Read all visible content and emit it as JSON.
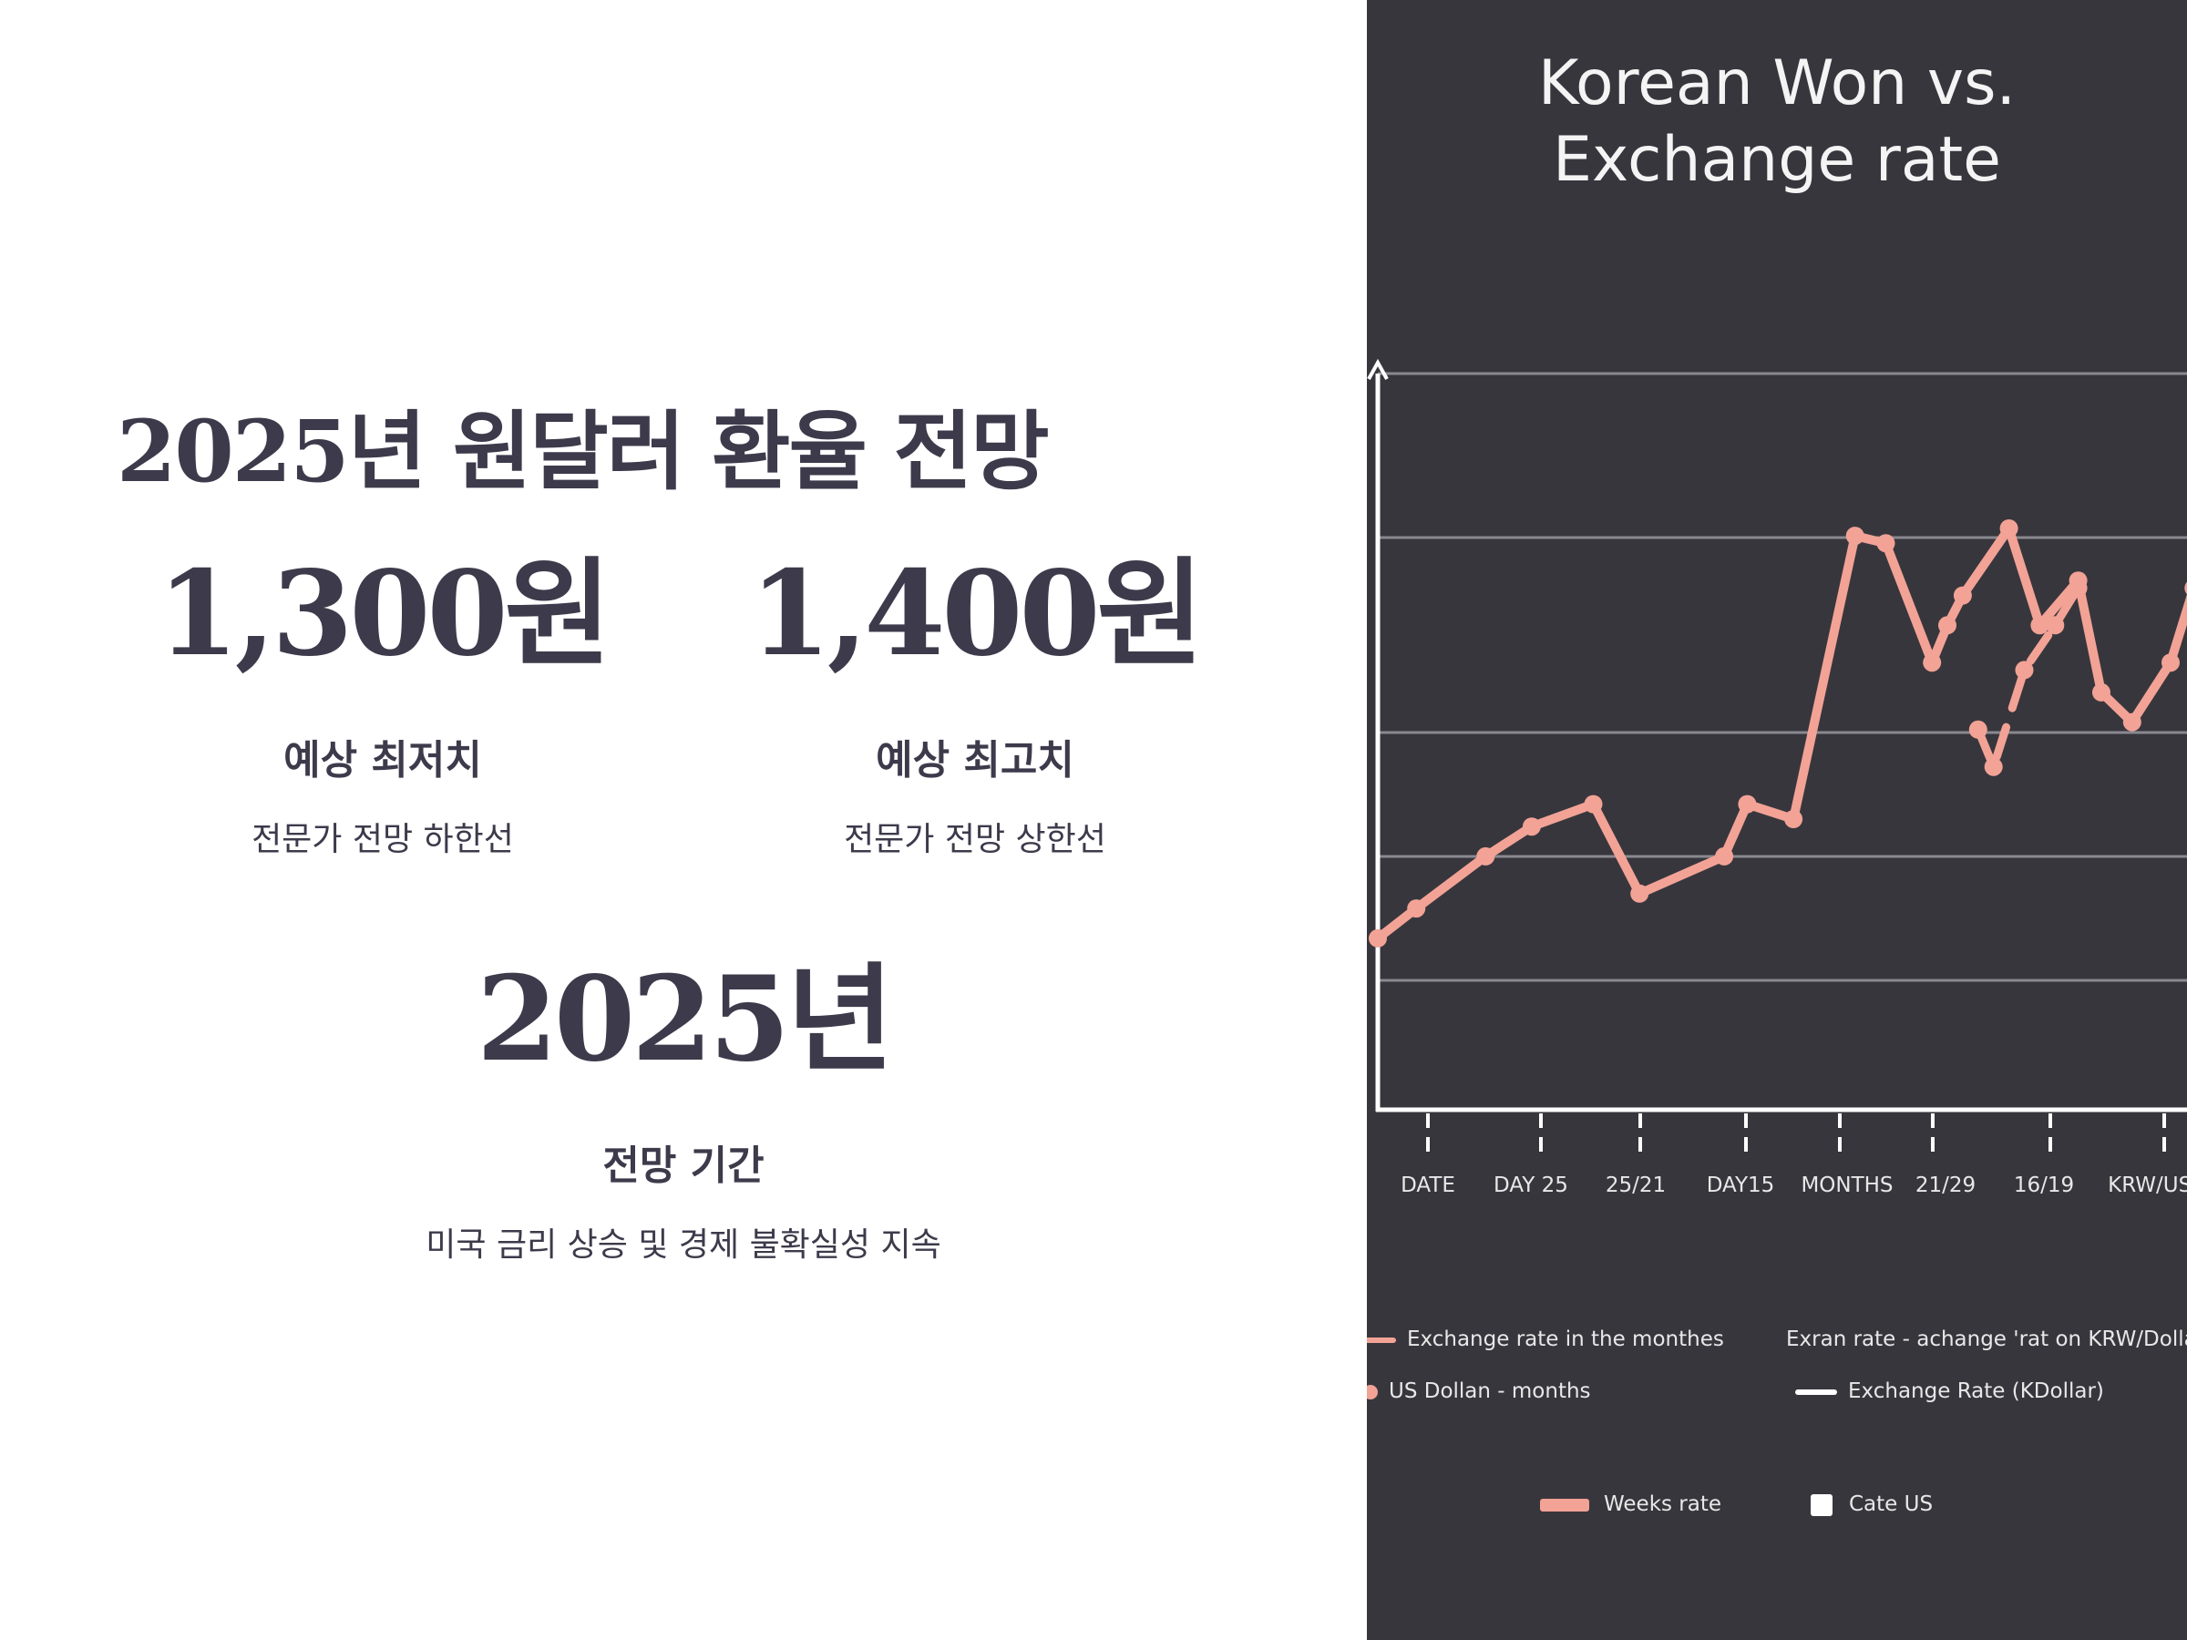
{
  "left": {
    "title": "2025년 원달러 환율 전망",
    "stats": [
      {
        "value": "1,300원",
        "label": "예상 최저치",
        "desc": "전문가 전망 하한선"
      },
      {
        "value": "1,400원",
        "label": "예상 최고치",
        "desc": "전문가 전망 상한선"
      },
      {
        "value": "2025년",
        "label": "전망 기간",
        "desc": "미국 금리 상승 및 경제 불확실성 지속"
      }
    ]
  },
  "colors": {
    "accent": "#f2a396",
    "dark_panel": "#38363d",
    "text": "#3d3a4b"
  },
  "chart_data": {
    "type": "line",
    "title": "Korean Won vs. Exchange rate",
    "x_tick_labels": [
      "DATE",
      "DAY 25",
      "25/21",
      "DAY15",
      "MONTHS",
      "21/29",
      "16/19",
      "KRW/USD"
    ],
    "ylim": [
      0,
      10
    ],
    "grid": true,
    "series": [
      {
        "name": "Exchange rate in the monthes",
        "style": "solid",
        "x": [
          0,
          0.5,
          1.4,
          2,
          2.8,
          3.4,
          4.5,
          4.8,
          5.4,
          6.2,
          6.6,
          7.2,
          7.4,
          7.6,
          8.2,
          8.6,
          9.1,
          9.4,
          9.8,
          10.3,
          10.6
        ],
        "values": [
          2.3,
          2.7,
          3.4,
          3.8,
          4.1,
          2.9,
          3.4,
          4.1,
          3.9,
          7.7,
          7.6,
          6.0,
          6.5,
          6.9,
          7.8,
          6.5,
          7.1,
          5.6,
          5.2,
          6.0,
          7.0
        ]
      },
      {
        "name": "Exchange rate (KDollar)",
        "style": "dashed",
        "x": [
          7.8,
          8.0,
          8.4,
          8.8,
          9.1
        ],
        "values": [
          5.1,
          4.6,
          5.9,
          6.5,
          7.0
        ]
      }
    ],
    "legend": [
      {
        "label": "Exchange rate in the monthes",
        "marker": "line",
        "color": "#f2a396"
      },
      {
        "label": "Exran rate - achange 'rat on KRW/Dollars",
        "marker": "none",
        "color": "#e8e8e8"
      },
      {
        "label": "US Dollan - months",
        "marker": "dot",
        "color": "#f2a396"
      },
      {
        "label": "Exchange Rate (KDollar)",
        "marker": "line",
        "color": "#ffffff"
      },
      {
        "label": "Weeks rate",
        "marker": "bar",
        "color": "#f2a396"
      },
      {
        "label": "Cate US",
        "marker": "square",
        "color": "#ffffff"
      }
    ],
    "legend_position": "bottom"
  }
}
